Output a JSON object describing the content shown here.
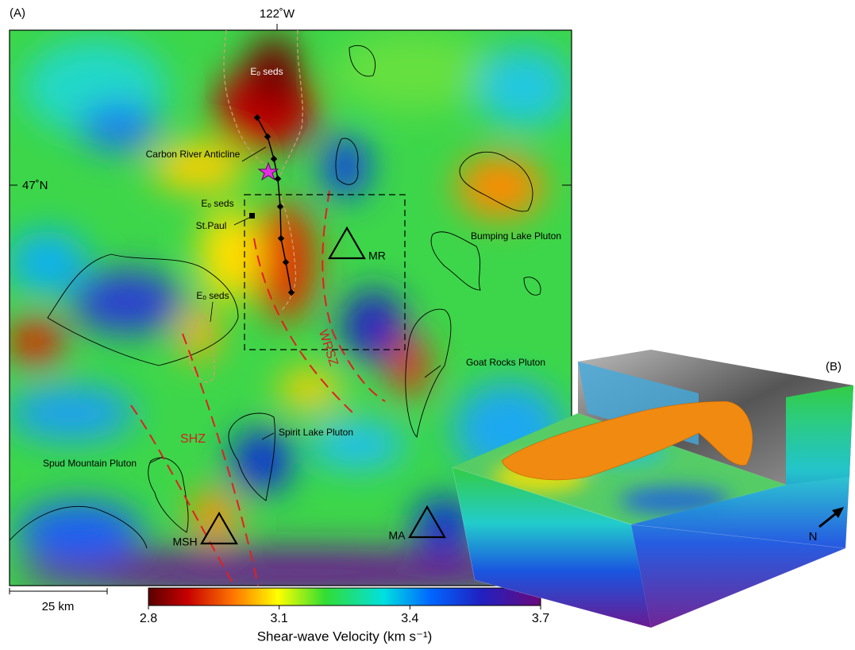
{
  "panel_a": {
    "label": "(A)",
    "lon_label": "122˚W",
    "lat_label": "47˚N",
    "annotations": [
      "Eₒ seds",
      "Carbon River Anticline",
      "Eₒ seds",
      "St.Paul",
      "Bumping Lake Pluton",
      "MR",
      "Eₒ seds",
      "WRSZ",
      "Goat Rocks Pluton",
      "SHZ",
      "Spirit Lake Pluton",
      "Spud Mountain Pluton",
      "MSH",
      "MA"
    ],
    "scale_bar": "25 km",
    "colorbar": {
      "title": "Shear-wave Velocity (km s⁻¹)",
      "lim": [
        2.8,
        3.7
      ],
      "ticks": [
        2.8,
        3.1,
        3.4,
        3.7
      ]
    }
  },
  "panel_b": {
    "label": "(B)",
    "north": "N"
  }
}
